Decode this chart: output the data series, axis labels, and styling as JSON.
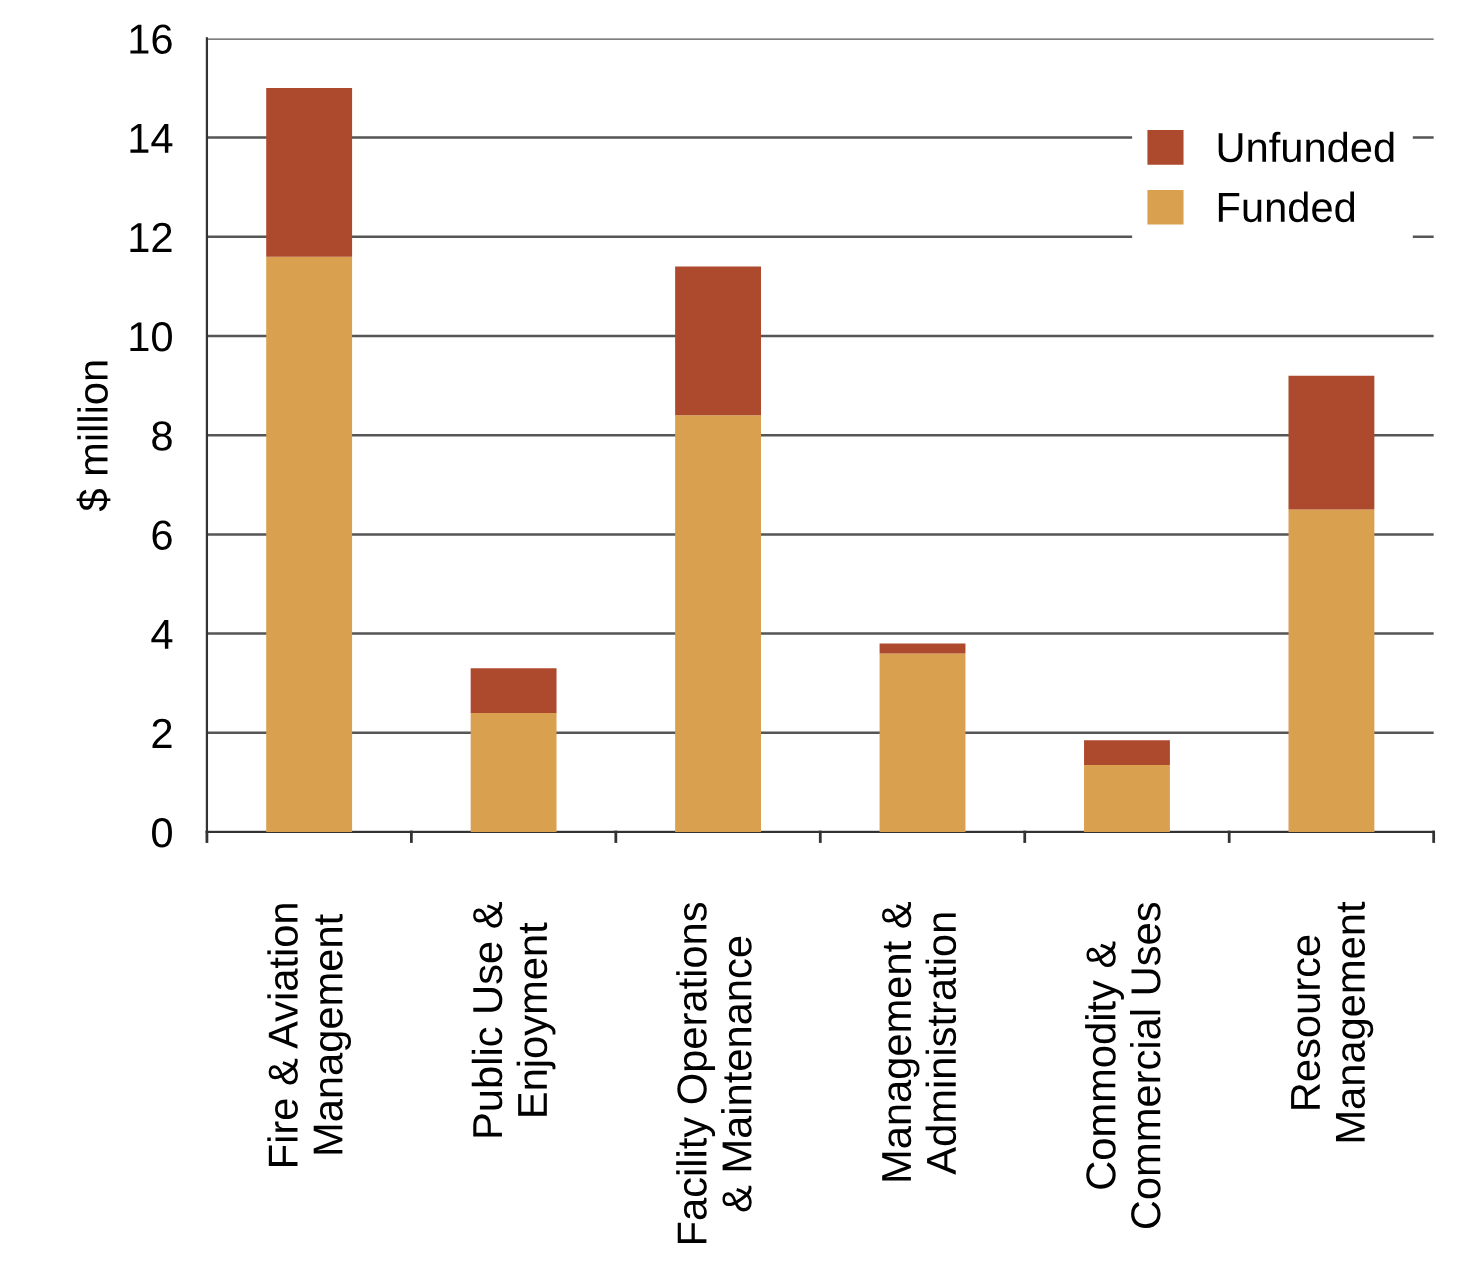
{
  "chart_data": {
    "type": "bar",
    "stacked": true,
    "ylabel": "$ million",
    "categories": [
      "Fire & Aviation\nManagement",
      "Public Use &\nEnjoyment",
      "Facility Operations\n& Maintenance",
      "Management &\nAdministration",
      "Commodity &\nCommercial Uses",
      "Resource\nManagement"
    ],
    "series": [
      {
        "name": "Funded",
        "color": "#d9a04f",
        "values": [
          11.6,
          2.4,
          8.4,
          3.6,
          1.35,
          6.5
        ]
      },
      {
        "name": "Unfunded",
        "color": "#ad4a2d",
        "values": [
          3.4,
          0.9,
          3.0,
          0.2,
          0.5,
          2.7
        ]
      }
    ],
    "ylim": [
      0,
      16
    ],
    "yticks": [
      0,
      2,
      4,
      6,
      8,
      10,
      12,
      14,
      16
    ],
    "grid": "y",
    "legend": "top right"
  }
}
